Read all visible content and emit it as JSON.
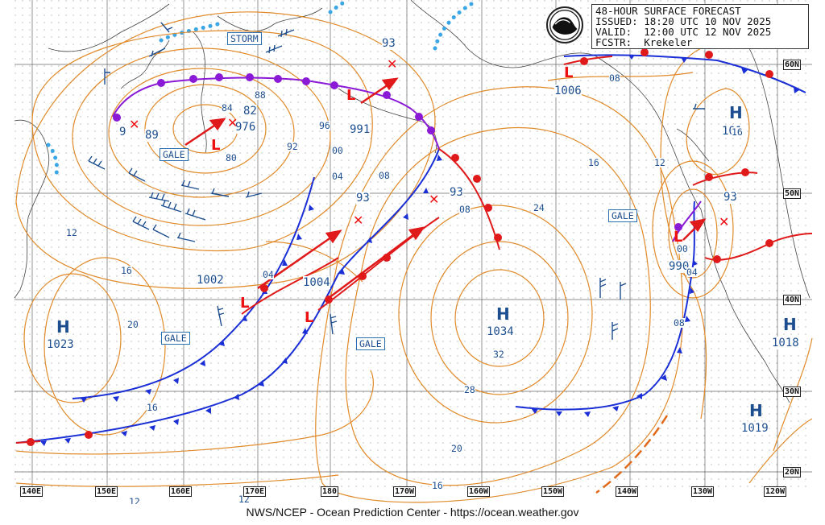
{
  "header": {
    "title": "48-HOUR SURFACE FORECAST",
    "issued": "ISSUED: 18:20 UTC 10 NOV 2025",
    "valid": "VALID:  12:00 UTC 12 NOV 2025",
    "forecaster": "FCSTR:  Krekeler"
  },
  "logo_name": "noaa-logo-icon",
  "footer": "NWS/NCEP - Ocean Prediction Center - https://ocean.weather.gov",
  "latitude_labels": [
    "60N",
    "50N",
    "40N",
    "30N",
    "20N"
  ],
  "longitude_labels": [
    "140E",
    "150E",
    "160E",
    "170E",
    "180",
    "170W",
    "160W",
    "150W",
    "140W",
    "130W",
    "120W"
  ],
  "warnings": {
    "storm": "STORM",
    "gale_1": "GALE",
    "gale_2": "GALE",
    "gale_3": "GALE",
    "gale_4": "GALE"
  },
  "highs": [
    {
      "symbol": "H",
      "pressure": "1023"
    },
    {
      "symbol": "H",
      "pressure": "1034"
    },
    {
      "symbol": "H",
      "pressure": "1018"
    },
    {
      "symbol": "H",
      "pressure": "1019"
    },
    {
      "symbol": "H",
      "pressure": "101"
    }
  ],
  "lows": [
    {
      "symbol": "L",
      "pressure": "976"
    },
    {
      "symbol": "L",
      "pressure": "991"
    },
    {
      "symbol": "L",
      "pressure": "1002"
    },
    {
      "symbol": "L",
      "pressure": "1004"
    },
    {
      "symbol": "L",
      "pressure": "1006"
    },
    {
      "symbol": "L",
      "pressure": "990"
    }
  ],
  "pressure_labels": {
    "p93a": "93",
    "p93b": "93",
    "p93c": "93",
    "p93d": "93",
    "p89": "89",
    "p9": "9",
    "p82": "82",
    "p84": "84"
  },
  "isobar_labels": [
    "88",
    "92",
    "96",
    "00",
    "04",
    "08",
    "80",
    "24",
    "16",
    "12",
    "12",
    "16",
    "20",
    "16",
    "12",
    "12",
    "16",
    "20",
    "28",
    "32",
    "08",
    "04",
    "08",
    "00",
    "08",
    "16",
    "04"
  ],
  "colors": {
    "isobar": "#e08a2a",
    "cold_front": "#1a2fd6",
    "warm_front": "#e01a1a",
    "occluded_front": "#8a1ad6",
    "text_blue": "#1d4e8f",
    "ice_edge": "#3aa6e6",
    "grid": "#777777"
  }
}
